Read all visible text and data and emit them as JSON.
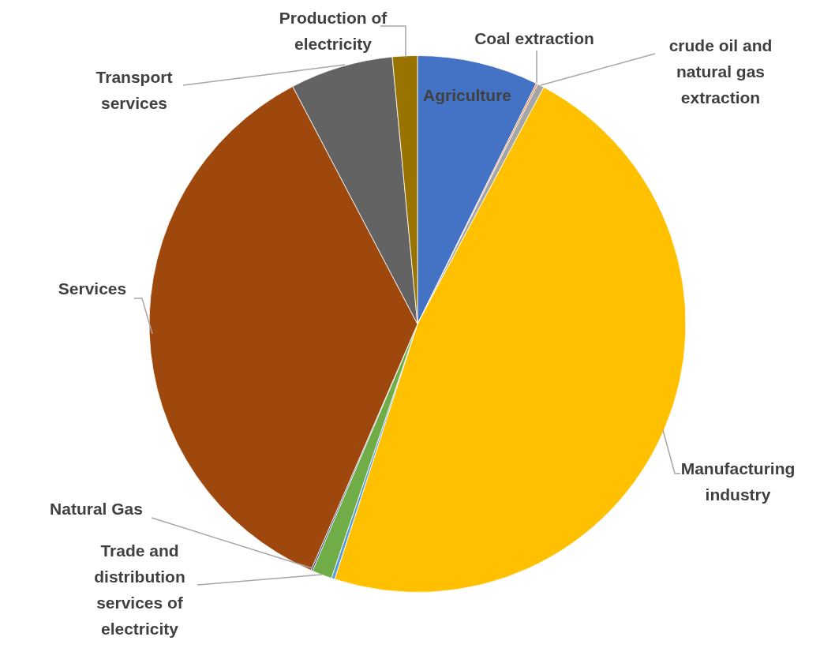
{
  "chart_data": {
    "type": "pie",
    "categories": [
      "Agriculture",
      "Coal extraction",
      "crude oil and natural gas extraction",
      "Manufacturing industry",
      null,
      "Trade and distribution services of electricity",
      "Natural Gas",
      "Services",
      "Transport services",
      "Production of electricity"
    ],
    "values": [
      7.3,
      0.1,
      0.4,
      47.2,
      0.2,
      1.2,
      0.1,
      35.8,
      6.2,
      1.5
    ],
    "colors": [
      "#4472c4",
      "#ed7d31",
      "#a5a5a5",
      "#ffc000",
      "#5b9bd5",
      "#70ad47",
      "#264478",
      "#9e480e",
      "#636363",
      "#997300"
    ],
    "legend": false
  }
}
